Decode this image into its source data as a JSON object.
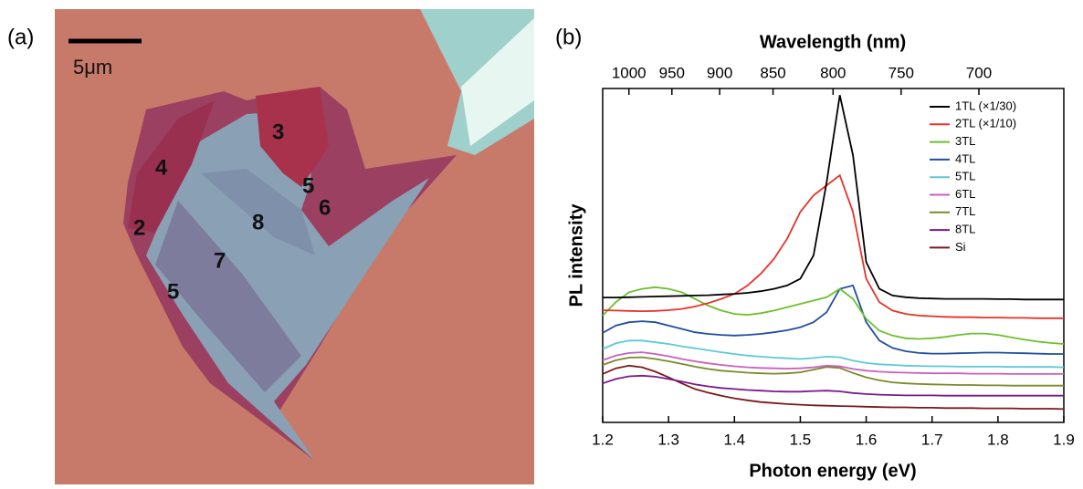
{
  "panel_a": {
    "panel_label": "(a)",
    "scale_bar": "5μm",
    "labels": [
      "3",
      "4",
      "5",
      "6",
      "2",
      "8",
      "7",
      "5"
    ]
  },
  "chart_data": {
    "type": "line",
    "panel_label": "(b)",
    "x_label": "Photon energy (eV)",
    "x2_label": "Wavelength (nm)",
    "y_label": "PL intensity",
    "xlim": [
      1.2,
      1.9
    ],
    "xticks": [
      1.2,
      1.3,
      1.4,
      1.5,
      1.6,
      1.7,
      1.8,
      1.9
    ],
    "x2lim": [
      1033.2,
      652.5
    ],
    "x2ticks": [
      1000,
      950,
      900,
      850,
      800,
      750,
      700
    ],
    "x2scale": "reciprocal",
    "ylim": [
      0,
      1
    ],
    "x": [
      1.2,
      1.22,
      1.24,
      1.26,
      1.28,
      1.3,
      1.32,
      1.34,
      1.36,
      1.38,
      1.4,
      1.42,
      1.44,
      1.46,
      1.48,
      1.5,
      1.52,
      1.54,
      1.56,
      1.58,
      1.6,
      1.62,
      1.64,
      1.66,
      1.68,
      1.7,
      1.72,
      1.74,
      1.76,
      1.78,
      1.8,
      1.82,
      1.84,
      1.86,
      1.88,
      1.9
    ],
    "series": [
      {
        "name": "1TL (×1/30)",
        "color": "#000000",
        "values": [
          0.374,
          0.374,
          0.375,
          0.376,
          0.377,
          0.378,
          0.379,
          0.38,
          0.381,
          0.383,
          0.385,
          0.388,
          0.393,
          0.4,
          0.41,
          0.43,
          0.5,
          0.72,
          0.98,
          0.8,
          0.48,
          0.4,
          0.38,
          0.375,
          0.372,
          0.371,
          0.37,
          0.37,
          0.37,
          0.37,
          0.369,
          0.369,
          0.368,
          0.368,
          0.368,
          0.368
        ]
      },
      {
        "name": "2TL (×1/10)",
        "color": "#e8322a",
        "values": [
          0.336,
          0.335,
          0.334,
          0.333,
          0.334,
          0.336,
          0.34,
          0.347,
          0.357,
          0.37,
          0.385,
          0.41,
          0.445,
          0.49,
          0.55,
          0.63,
          0.68,
          0.71,
          0.74,
          0.63,
          0.43,
          0.36,
          0.335,
          0.325,
          0.32,
          0.318,
          0.316,
          0.315,
          0.315,
          0.314,
          0.314,
          0.313,
          0.313,
          0.312,
          0.312,
          0.312
        ]
      },
      {
        "name": "3TL",
        "color": "#6cc02c",
        "values": [
          0.32,
          0.36,
          0.39,
          0.4,
          0.405,
          0.4,
          0.39,
          0.37,
          0.35,
          0.335,
          0.325,
          0.322,
          0.327,
          0.335,
          0.345,
          0.355,
          0.365,
          0.375,
          0.4,
          0.37,
          0.31,
          0.275,
          0.26,
          0.252,
          0.25,
          0.252,
          0.256,
          0.262,
          0.266,
          0.266,
          0.262,
          0.255,
          0.248,
          0.242,
          0.238,
          0.235
        ]
      },
      {
        "name": "4TL",
        "color": "#1f4ea0",
        "values": [
          0.268,
          0.29,
          0.3,
          0.303,
          0.3,
          0.29,
          0.28,
          0.27,
          0.265,
          0.262,
          0.26,
          0.262,
          0.265,
          0.27,
          0.276,
          0.285,
          0.3,
          0.33,
          0.4,
          0.41,
          0.3,
          0.245,
          0.223,
          0.213,
          0.208,
          0.206,
          0.206,
          0.207,
          0.208,
          0.209,
          0.209,
          0.208,
          0.207,
          0.206,
          0.205,
          0.205
        ]
      },
      {
        "name": "5TL",
        "color": "#5fc8d8",
        "values": [
          0.22,
          0.237,
          0.245,
          0.245,
          0.24,
          0.235,
          0.228,
          0.222,
          0.216,
          0.21,
          0.205,
          0.2,
          0.197,
          0.194,
          0.192,
          0.19,
          0.193,
          0.197,
          0.195,
          0.185,
          0.178,
          0.174,
          0.172,
          0.17,
          0.169,
          0.168,
          0.168,
          0.167,
          0.167,
          0.167,
          0.167,
          0.166,
          0.166,
          0.166,
          0.166,
          0.165
        ]
      },
      {
        "name": "6TL",
        "color": "#c860c0",
        "values": [
          0.186,
          0.2,
          0.208,
          0.21,
          0.205,
          0.198,
          0.19,
          0.183,
          0.177,
          0.172,
          0.168,
          0.165,
          0.163,
          0.162,
          0.161,
          0.162,
          0.165,
          0.17,
          0.168,
          0.16,
          0.155,
          0.152,
          0.15,
          0.149,
          0.148,
          0.147,
          0.147,
          0.147,
          0.146,
          0.146,
          0.146,
          0.145,
          0.145,
          0.145,
          0.145,
          0.145
        ]
      },
      {
        "name": "7TL",
        "color": "#7a8a28",
        "values": [
          0.172,
          0.186,
          0.194,
          0.195,
          0.19,
          0.183,
          0.175,
          0.167,
          0.16,
          0.155,
          0.152,
          0.149,
          0.147,
          0.146,
          0.147,
          0.15,
          0.158,
          0.166,
          0.163,
          0.148,
          0.135,
          0.126,
          0.12,
          0.117,
          0.115,
          0.114,
          0.113,
          0.112,
          0.112,
          0.111,
          0.111,
          0.11,
          0.11,
          0.11,
          0.11,
          0.11
        ]
      },
      {
        "name": "8TL",
        "color": "#7a1a8a",
        "values": [
          0.117,
          0.13,
          0.138,
          0.14,
          0.137,
          0.13,
          0.122,
          0.114,
          0.108,
          0.103,
          0.1,
          0.097,
          0.095,
          0.093,
          0.092,
          0.092,
          0.094,
          0.095,
          0.093,
          0.088,
          0.085,
          0.083,
          0.082,
          0.081,
          0.081,
          0.081,
          0.08,
          0.08,
          0.08,
          0.08,
          0.08,
          0.08,
          0.08,
          0.08,
          0.08,
          0.08
        ]
      },
      {
        "name": "Si",
        "color": "#7a1a1a",
        "values": [
          0.145,
          0.162,
          0.17,
          0.165,
          0.152,
          0.135,
          0.117,
          0.1,
          0.089,
          0.08,
          0.072,
          0.066,
          0.061,
          0.058,
          0.055,
          0.053,
          0.051,
          0.05,
          0.049,
          0.048,
          0.047,
          0.046,
          0.045,
          0.045,
          0.044,
          0.044,
          0.043,
          0.043,
          0.043,
          0.042,
          0.042,
          0.042,
          0.041,
          0.041,
          0.041,
          0.04
        ]
      }
    ]
  }
}
